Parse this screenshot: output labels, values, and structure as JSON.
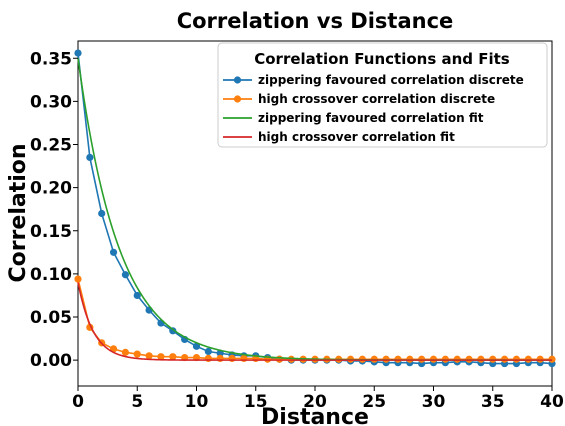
{
  "chart_data": {
    "type": "line",
    "title": "Correlation vs Distance",
    "xlabel": "Distance",
    "ylabel": "Correlation",
    "xlim": [
      0,
      40
    ],
    "ylim": [
      -0.03,
      0.37
    ],
    "xticks": [
      0,
      5,
      10,
      15,
      20,
      25,
      30,
      35,
      40
    ],
    "yticks": [
      0.0,
      0.05,
      0.1,
      0.15,
      0.2,
      0.25,
      0.3,
      0.35
    ],
    "ytick_labels": [
      "0.00",
      "0.05",
      "0.10",
      "0.15",
      "0.20",
      "0.25",
      "0.30",
      "0.35"
    ],
    "grid": false,
    "legend": {
      "title": "Correlation Functions and Fits",
      "placement": "top-right"
    },
    "series": [
      {
        "name": "zippering favoured correlation discrete",
        "kind": "line-markers",
        "color": "#1f77b4",
        "x": [
          0,
          1,
          2,
          3,
          4,
          5,
          6,
          7,
          8,
          9,
          10,
          11,
          12,
          13,
          14,
          15,
          16,
          17,
          18,
          19,
          20,
          21,
          22,
          23,
          24,
          25,
          26,
          27,
          28,
          29,
          30,
          31,
          32,
          33,
          34,
          35,
          36,
          37,
          38,
          39,
          40
        ],
        "values": [
          0.356,
          0.235,
          0.17,
          0.125,
          0.099,
          0.075,
          0.058,
          0.043,
          0.034,
          0.024,
          0.016,
          0.01,
          0.008,
          0.006,
          0.005,
          0.005,
          0.003,
          0.001,
          0.0,
          0.0,
          0.0,
          0.0,
          0.0,
          -0.001,
          -0.001,
          -0.002,
          -0.003,
          -0.003,
          -0.003,
          -0.004,
          -0.003,
          -0.003,
          -0.002,
          -0.002,
          -0.003,
          -0.004,
          -0.004,
          -0.004,
          -0.003,
          -0.003,
          -0.004
        ]
      },
      {
        "name": "high crossover correlation discrete",
        "kind": "line-markers",
        "color": "#ff7f0e",
        "x": [
          0,
          1,
          2,
          3,
          4,
          5,
          6,
          7,
          8,
          9,
          10,
          11,
          12,
          13,
          14,
          15,
          16,
          17,
          18,
          19,
          20,
          21,
          22,
          23,
          24,
          25,
          26,
          27,
          28,
          29,
          30,
          31,
          32,
          33,
          34,
          35,
          36,
          37,
          38,
          39,
          40
        ],
        "values": [
          0.094,
          0.038,
          0.02,
          0.013,
          0.009,
          0.007,
          0.005,
          0.004,
          0.004,
          0.003,
          0.003,
          0.002,
          0.002,
          0.002,
          0.002,
          0.002,
          0.001,
          0.001,
          0.001,
          0.001,
          0.001,
          0.001,
          0.001,
          0.001,
          0.001,
          0.001,
          0.001,
          0.001,
          0.001,
          0.001,
          0.001,
          0.001,
          0.001,
          0.001,
          0.001,
          0.001,
          0.001,
          0.001,
          0.001,
          0.001,
          0.001
        ]
      },
      {
        "name": "zippering favoured correlation fit",
        "kind": "curve",
        "color": "#2ca02c",
        "model": {
          "form": "exponential",
          "amplitude": 0.35,
          "decay_length": 3.5
        }
      },
      {
        "name": "high crossover correlation fit",
        "kind": "curve",
        "color": "#d62728",
        "model": {
          "form": "exponential",
          "amplitude": 0.09,
          "decay_length": 1.3
        }
      }
    ]
  }
}
